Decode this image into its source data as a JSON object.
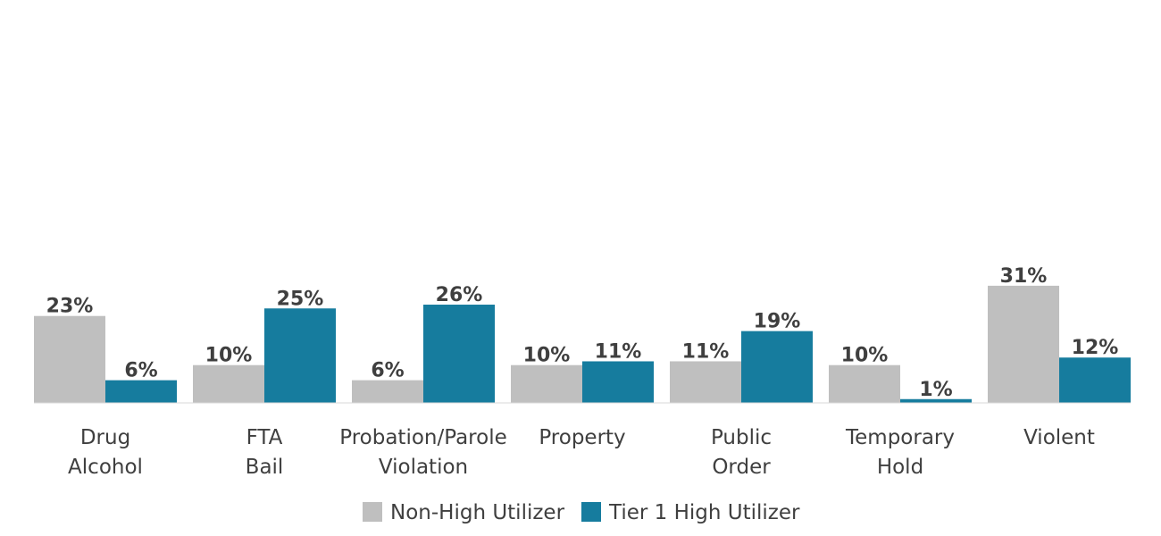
{
  "chart_data": {
    "type": "bar",
    "categories": [
      [
        "Drug",
        "Alcohol"
      ],
      [
        "FTA",
        "Bail"
      ],
      [
        "Probation/Parole",
        "Violation"
      ],
      [
        "Property"
      ],
      [
        "Public",
        "Order"
      ],
      [
        "Temporary",
        "Hold"
      ],
      [
        "Violent"
      ]
    ],
    "series": [
      {
        "name": "Non-High Utilizer",
        "color": "#bfbfbf",
        "values": [
          23,
          10,
          6,
          10,
          11,
          10,
          31
        ],
        "labels": [
          "23%",
          "10%",
          "6%",
          "10%",
          "11%",
          "10%",
          "31%"
        ]
      },
      {
        "name": "Tier 1 High Utilizer",
        "color": "#167c9e",
        "values": [
          6,
          25,
          26,
          11,
          19,
          1,
          12
        ],
        "labels": [
          "6%",
          "25%",
          "26%",
          "11%",
          "19%",
          "1%",
          "12%"
        ]
      }
    ],
    "ylim": [
      0,
      100
    ],
    "grid": false,
    "legend_position": "bottom"
  }
}
